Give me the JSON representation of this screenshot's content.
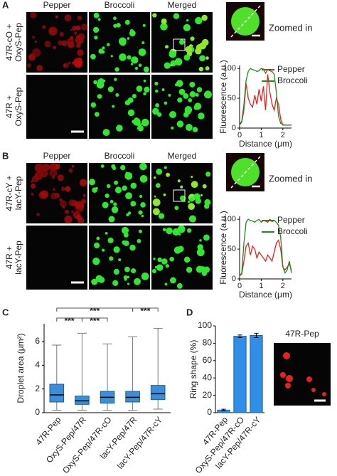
{
  "panels": [
    {
      "label": "A",
      "columns": [
        "Pepper",
        "Broccoli",
        "Merged"
      ],
      "rows": [
        [
          "47R-cO +",
          "OxyS-Pep"
        ],
        [
          "47R +",
          "OxyS-Pep"
        ]
      ],
      "zoom_label": "Zoomed in"
    },
    {
      "label": "B",
      "columns": [
        "Pepper",
        "Broccoli",
        "Merged"
      ],
      "rows": [
        [
          "47R-cY +",
          "lacY-Pep"
        ],
        [
          "47R +",
          "lacY-Pep"
        ]
      ],
      "zoom_label": "Zoomed in"
    },
    {
      "label": "C"
    },
    {
      "label": "D",
      "image_label": "47R-Pep"
    }
  ],
  "chart_data": [
    {
      "type": "line",
      "xlabel": "Distance (μm)",
      "ylabel": "Fluorescence (a.u.)",
      "xlim": [
        0,
        2.4
      ],
      "ylim": [
        0,
        105
      ],
      "xticks": [
        0,
        1,
        2
      ],
      "yticks": [
        0,
        50,
        100
      ],
      "x": [
        0,
        0.1,
        0.2,
        0.3,
        0.4,
        0.5,
        0.6,
        0.7,
        0.8,
        0.9,
        1.0,
        1.1,
        1.2,
        1.3,
        1.4,
        1.5,
        1.6,
        1.7,
        1.8,
        1.9,
        2.0,
        2.1,
        2.2,
        2.3,
        2.4
      ],
      "series": [
        {
          "name": "Pepper",
          "color": "#e8211d",
          "values": [
            5,
            10,
            30,
            75,
            50,
            40,
            35,
            55,
            40,
            65,
            45,
            70,
            30,
            90,
            60,
            40,
            30,
            50,
            40,
            15,
            5,
            5,
            5,
            5,
            5
          ]
        },
        {
          "name": "Broccoli",
          "color": "#1f8a1f",
          "values": [
            5,
            12,
            40,
            80,
            95,
            100,
            98,
            97,
            95,
            96,
            100,
            99,
            92,
            98,
            96,
            95,
            90,
            60,
            20,
            8,
            6,
            5,
            5,
            5,
            5
          ]
        }
      ]
    },
    {
      "type": "line",
      "xlabel": "Distance (μm)",
      "ylabel": "Fluorescence (a.u.)",
      "xlim": [
        0,
        2.4
      ],
      "ylim": [
        0,
        105
      ],
      "xticks": [
        0,
        1,
        2
      ],
      "yticks": [
        0,
        50,
        100
      ],
      "x": [
        0,
        0.1,
        0.2,
        0.3,
        0.4,
        0.5,
        0.6,
        0.7,
        0.8,
        0.9,
        1.0,
        1.1,
        1.2,
        1.3,
        1.4,
        1.5,
        1.6,
        1.7,
        1.8,
        1.9,
        2.0,
        2.1,
        2.2,
        2.3,
        2.4
      ],
      "series": [
        {
          "name": "Pepper",
          "color": "#e8211d",
          "values": [
            5,
            8,
            30,
            55,
            60,
            40,
            55,
            50,
            35,
            45,
            40,
            35,
            30,
            40,
            35,
            30,
            45,
            60,
            65,
            50,
            20,
            15,
            20,
            25,
            15
          ]
        },
        {
          "name": "Broccoli",
          "color": "#1f8a1f",
          "values": [
            5,
            10,
            60,
            95,
            100,
            98,
            97,
            95,
            98,
            100,
            95,
            98,
            97,
            95,
            100,
            96,
            98,
            95,
            90,
            70,
            20,
            10,
            15,
            30,
            10
          ]
        }
      ]
    },
    {
      "type": "box",
      "ylabel": "Droplet area (μm²)",
      "ylim": [
        0,
        7.5
      ],
      "yticks": [
        0,
        2,
        4,
        6
      ],
      "color": "#3b8fd9",
      "categories": [
        "47R-Pep",
        "OxyS-Pep/47R",
        "OxyS-Pep/47R-cO",
        "lacY-Pep/47R",
        "lacY-Pep/47R-cY"
      ],
      "boxes": [
        {
          "min": 0.2,
          "q1": 0.9,
          "median": 1.5,
          "q3": 2.4,
          "max": 5.7
        },
        {
          "min": 0.2,
          "q1": 0.7,
          "median": 1.0,
          "q3": 1.4,
          "max": 6.7
        },
        {
          "min": 0.2,
          "q1": 0.8,
          "median": 1.3,
          "q3": 1.8,
          "max": 5.8
        },
        {
          "min": 0.2,
          "q1": 0.9,
          "median": 1.3,
          "q3": 1.8,
          "max": 6.4
        },
        {
          "min": 0.3,
          "q1": 1.1,
          "median": 1.6,
          "q3": 2.3,
          "max": 7.1
        }
      ],
      "significance": [
        {
          "from": "47R-Pep",
          "to": "OxyS-Pep/47R",
          "label": "***"
        },
        {
          "from": "OxyS-Pep/47R",
          "to": "OxyS-Pep/47R-cO",
          "label": "***"
        },
        {
          "from": "47R-Pep",
          "to": "lacY-Pep/47R",
          "label": "***"
        },
        {
          "from": "lacY-Pep/47R",
          "to": "lacY-Pep/47R-cY",
          "label": "***"
        }
      ]
    },
    {
      "type": "bar",
      "ylabel": "Ring shape (%)",
      "ylim": [
        0,
        100
      ],
      "yticks": [
        0,
        20,
        40,
        60,
        80,
        100
      ],
      "color": "#2f8fe8",
      "categories": [
        "47R-Pep",
        "OxyS-Pep/47R-cO",
        "lacY-Pep/47R-cY"
      ],
      "values": [
        3,
        88,
        89
      ],
      "errors": [
        1,
        1.5,
        2.5
      ]
    }
  ]
}
